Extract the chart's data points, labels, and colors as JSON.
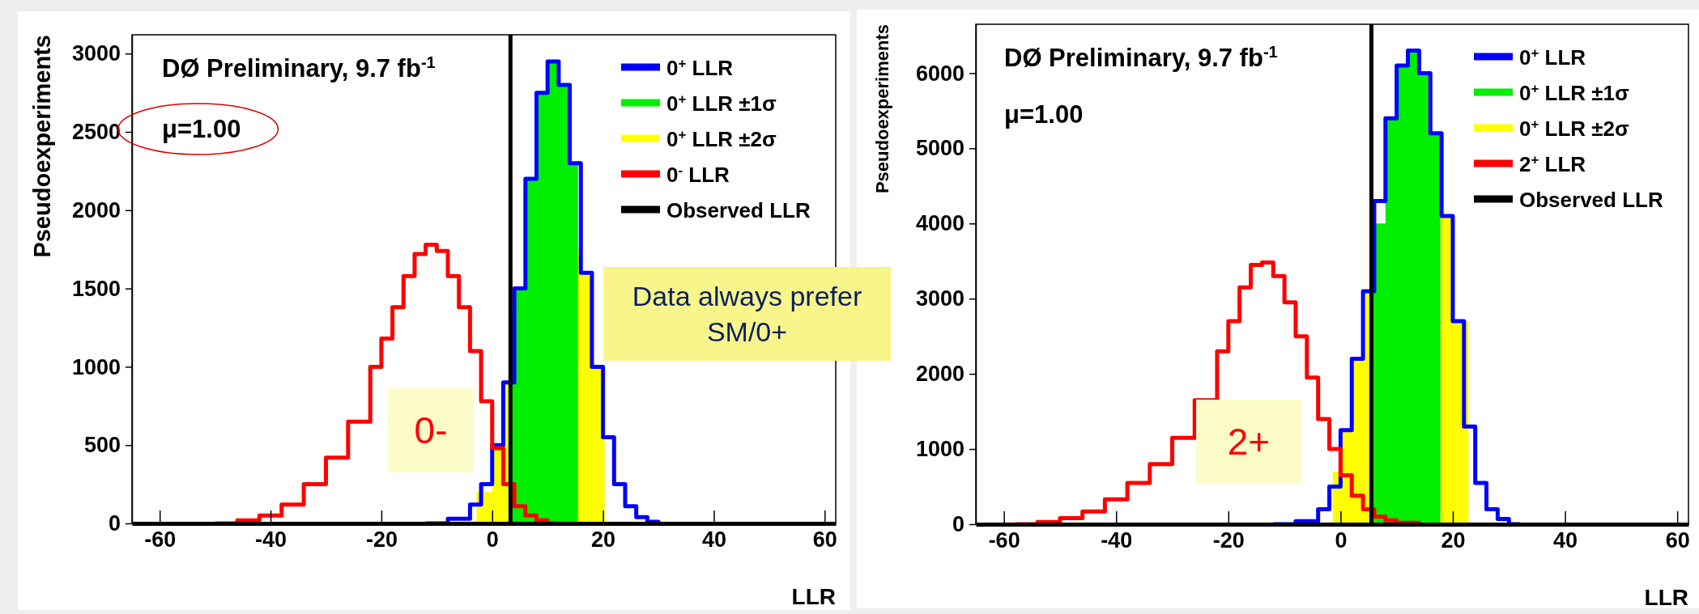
{
  "chart_data": [
    {
      "type": "step",
      "title": "DØ Preliminary, 9.7 fb$^{-1}$",
      "xlabel": "LLR",
      "ylabel": "Pseudoexperiments",
      "xlim": [
        -65,
        62
      ],
      "ylim": [
        0,
        3120
      ],
      "xticks": [
        -60,
        -40,
        -20,
        0,
        20,
        40,
        60
      ],
      "yticks": [
        0,
        500,
        1000,
        1500,
        2000,
        2500,
        3000
      ],
      "legend": "top right",
      "annotations": [
        "μ=1.00",
        "0-",
        "Data always prefer SM/0+"
      ],
      "series": [
        {
          "name": "0$^{+}$ LLR",
          "color": "#0000ff",
          "x": [
            -12,
            -8,
            -4,
            -2,
            0,
            2,
            4,
            6,
            8,
            10,
            12,
            14,
            16,
            18,
            20,
            22,
            24,
            26,
            28,
            30
          ],
          "values": [
            0,
            30,
            120,
            250,
            500,
            900,
            1500,
            2200,
            2750,
            2950,
            2800,
            2300,
            1600,
            1000,
            550,
            250,
            110,
            40,
            10,
            0
          ]
        },
        {
          "name": "0$^{+}$ LLR ±1σ",
          "type": "area",
          "color": "#00ee00",
          "x": [
            3.5,
            4,
            6,
            8,
            10,
            12,
            14,
            15.5
          ],
          "values": [
            1350,
            1500,
            2200,
            2750,
            2950,
            2800,
            2300,
            1750
          ]
        },
        {
          "name": "0$^{+}$ LLR ±2σ",
          "type": "area",
          "color": "#ffff00",
          "x": [
            -2.8,
            0,
            2,
            3.5,
            10,
            15.5,
            16,
            18,
            20.3
          ],
          "values": [
            200,
            500,
            900,
            1350,
            null,
            1750,
            1600,
            1000,
            500
          ]
        },
        {
          "name": "0$^{-}$ LLR",
          "color": "#ff0000",
          "x": [
            -50,
            -46,
            -42,
            -38,
            -34,
            -30,
            -26,
            -22,
            -20,
            -18,
            -16,
            -14,
            -12,
            -10,
            -8,
            -6,
            -4,
            -2,
            0,
            2,
            4,
            6,
            8,
            10,
            12
          ],
          "values": [
            0,
            20,
            50,
            120,
            250,
            420,
            650,
            1000,
            1180,
            1380,
            1580,
            1720,
            1780,
            1740,
            1580,
            1380,
            1100,
            780,
            480,
            250,
            110,
            50,
            20,
            0,
            0
          ]
        },
        {
          "name": "Observed LLR",
          "type": "line",
          "color": "#000000",
          "x": [
            3.3,
            3.3
          ],
          "values": [
            0,
            3120
          ]
        }
      ]
    },
    {
      "type": "step",
      "title": "DØ Preliminary, 9.7 fb$^{-1}$",
      "xlabel": "LLR",
      "ylabel": "Pseudoexperiments",
      "xlim": [
        -65,
        62
      ],
      "ylim": [
        0,
        6650
      ],
      "xticks": [
        -60,
        -40,
        -20,
        0,
        20,
        40,
        60
      ],
      "yticks": [
        0,
        1000,
        2000,
        3000,
        4000,
        5000,
        6000
      ],
      "legend": "top right",
      "annotations": [
        "μ=1.00",
        "2+"
      ],
      "series": [
        {
          "name": "0$^{+}$ LLR",
          "color": "#0000ff",
          "x": [
            -12,
            -8,
            -4,
            -2,
            0,
            2,
            4,
            6,
            8,
            10,
            12,
            14,
            16,
            18,
            20,
            22,
            24,
            26,
            28,
            30,
            32
          ],
          "values": [
            0,
            40,
            200,
            500,
            1250,
            2200,
            3100,
            4300,
            5400,
            6100,
            6300,
            6000,
            5200,
            4100,
            2700,
            1300,
            550,
            200,
            70,
            0,
            0
          ]
        },
        {
          "name": "0$^{+}$ LLR ±1σ",
          "type": "area",
          "color": "#00ee00",
          "x": [
            5.5,
            8,
            10,
            12,
            14,
            16,
            17.8
          ],
          "values": [
            4000,
            5400,
            6100,
            6300,
            6000,
            5200,
            4200
          ]
        },
        {
          "name": "0$^{+}$ LLR ±2σ",
          "type": "area",
          "color": "#ffff00",
          "x": [
            -1.4,
            0,
            2,
            4,
            5.5,
            12,
            17.8,
            18,
            20,
            22.8
          ],
          "values": [
            700,
            1250,
            2200,
            3100,
            4000,
            null,
            4200,
            4100,
            2700,
            900
          ]
        },
        {
          "name": "2$^{+}$ LLR",
          "color": "#ff0000",
          "x": [
            -58,
            -54,
            -50,
            -46,
            -42,
            -38,
            -34,
            -30,
            -26,
            -22,
            -20,
            -18,
            -16,
            -14,
            -12,
            -10,
            -8,
            -6,
            -4,
            -2,
            0,
            2,
            4,
            6,
            8,
            10,
            14
          ],
          "values": [
            0,
            30,
            80,
            170,
            330,
            550,
            800,
            1150,
            1650,
            2300,
            2700,
            3150,
            3450,
            3480,
            3300,
            2950,
            2500,
            1950,
            1400,
            1000,
            650,
            380,
            200,
            100,
            50,
            20,
            0
          ]
        },
        {
          "name": "Observed LLR",
          "type": "line",
          "color": "#000000",
          "x": [
            5.5,
            5.5
          ],
          "values": [
            0,
            6650
          ]
        }
      ]
    }
  ]
}
